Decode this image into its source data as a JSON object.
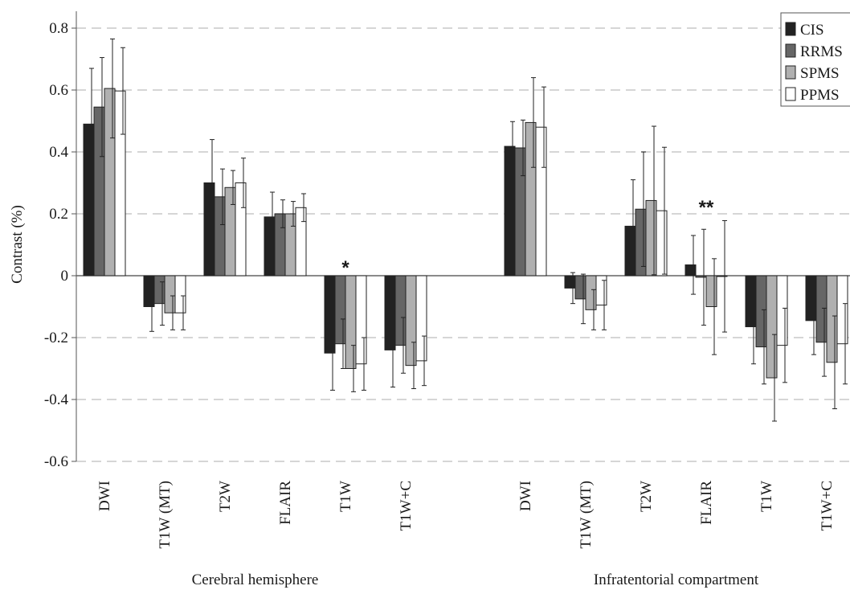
{
  "chart_data": {
    "type": "bar",
    "ylabel": "Contrast (%)",
    "ylim": [
      -0.6,
      0.8
    ],
    "yticks": [
      "0.8",
      "0.6",
      "0.4",
      "0.2",
      "0",
      "-0.2",
      "-0.4",
      "-0.6"
    ],
    "ytick_values": [
      0.8,
      0.6,
      0.4,
      0.2,
      0,
      -0.2,
      -0.4,
      -0.6
    ],
    "grid": "horizontal dashed",
    "legend_position": "top-right",
    "series_colors": {
      "CIS": "#222222",
      "RRMS": "#666666",
      "SPMS": "#b0b0b0",
      "PPMS": "#ffffff"
    },
    "series_names": [
      "CIS",
      "RRMS",
      "SPMS",
      "PPMS"
    ],
    "groups": [
      {
        "label": "Cerebral hemisphere",
        "categories": [
          "DWI",
          "T1W (MT)",
          "T2W",
          "FLAIR",
          "T1W",
          "T1W+C"
        ],
        "series": [
          {
            "name": "CIS",
            "values": [
              0.49,
              -0.1,
              0.3,
              0.19,
              -0.25,
              -0.24
            ],
            "errors": [
              0.18,
              0.08,
              0.14,
              0.08,
              0.12,
              0.12
            ]
          },
          {
            "name": "RRMS",
            "values": [
              0.545,
              -0.09,
              0.255,
              0.2,
              -0.22,
              -0.225
            ],
            "errors": [
              0.16,
              0.07,
              0.09,
              0.045,
              0.08,
              0.09
            ]
          },
          {
            "name": "SPMS",
            "values": [
              0.605,
              -0.12,
              0.285,
              0.2,
              -0.3,
              -0.29
            ],
            "errors": [
              0.16,
              0.055,
              0.055,
              0.04,
              0.075,
              0.075
            ]
          },
          {
            "name": "PPMS",
            "values": [
              0.597,
              -0.12,
              0.3,
              0.22,
              -0.285,
              -0.275
            ],
            "errors": [
              0.14,
              0.055,
              0.08,
              0.045,
              0.085,
              0.08
            ]
          }
        ],
        "annotations": [
          {
            "category": "T1W",
            "text": "*"
          }
        ]
      },
      {
        "label": "Infratentorial compartment",
        "categories": [
          "DWI",
          "T1W (MT)",
          "T2W",
          "FLAIR",
          "T1W",
          "T1W+C"
        ],
        "series": [
          {
            "name": "CIS",
            "values": [
              0.418,
              -0.04,
              0.16,
              0.035,
              -0.165,
              -0.145
            ],
            "errors": [
              0.08,
              0.05,
              0.15,
              0.095,
              0.12,
              0.11
            ]
          },
          {
            "name": "RRMS",
            "values": [
              0.413,
              -0.075,
              0.215,
              -0.005,
              -0.23,
              -0.215
            ],
            "errors": [
              0.09,
              0.08,
              0.185,
              0.155,
              0.12,
              0.11
            ]
          },
          {
            "name": "SPMS",
            "values": [
              0.495,
              -0.11,
              0.243,
              -0.1,
              -0.33,
              -0.28
            ],
            "errors": [
              0.145,
              0.065,
              0.24,
              0.155,
              0.14,
              0.15
            ]
          },
          {
            "name": "PPMS",
            "values": [
              0.48,
              -0.095,
              0.21,
              -0.002,
              -0.225,
              -0.22
            ],
            "errors": [
              0.13,
              0.08,
              0.205,
              0.18,
              0.12,
              0.13
            ]
          }
        ],
        "annotations": [
          {
            "category": "FLAIR",
            "text": "**"
          }
        ]
      }
    ]
  }
}
